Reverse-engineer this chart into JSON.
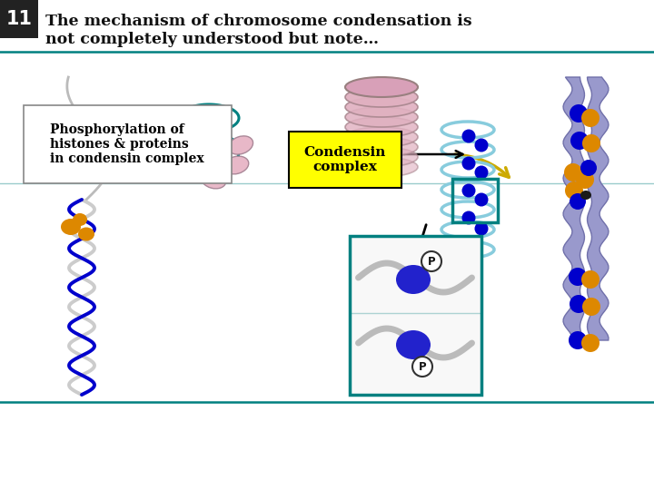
{
  "slide_number": "11",
  "title_line1": "The mechanism of chromosome condensation is",
  "title_line2": "not completely understood but note…",
  "condensin_label": "Condensin\ncomplex",
  "phospho_label": "Phosphorylation of\nhistones & proteins\nin condensin complex",
  "p_label": "P",
  "bg_color": "#ffffff",
  "slide_num_bg": "#222222",
  "slide_num_color": "#ffffff",
  "title_color": "#111111",
  "condensin_box_bg": "#ffff00",
  "condensin_box_border": "#000000",
  "phospho_box_bg": "#f0f0f0",
  "phospho_box_border": "#888888",
  "teal_color": "#008080",
  "divider_color": "#008080",
  "blue_color": "#0000cc",
  "orange_color": "#dd8800",
  "gray_color": "#aaaaaa",
  "pink_color": "#e8b8c8",
  "lavender_color": "#9999cc",
  "black_color": "#111111",
  "yellow_arrow": "#ccaa00",
  "detail_box_bg": "#f8f8f8"
}
